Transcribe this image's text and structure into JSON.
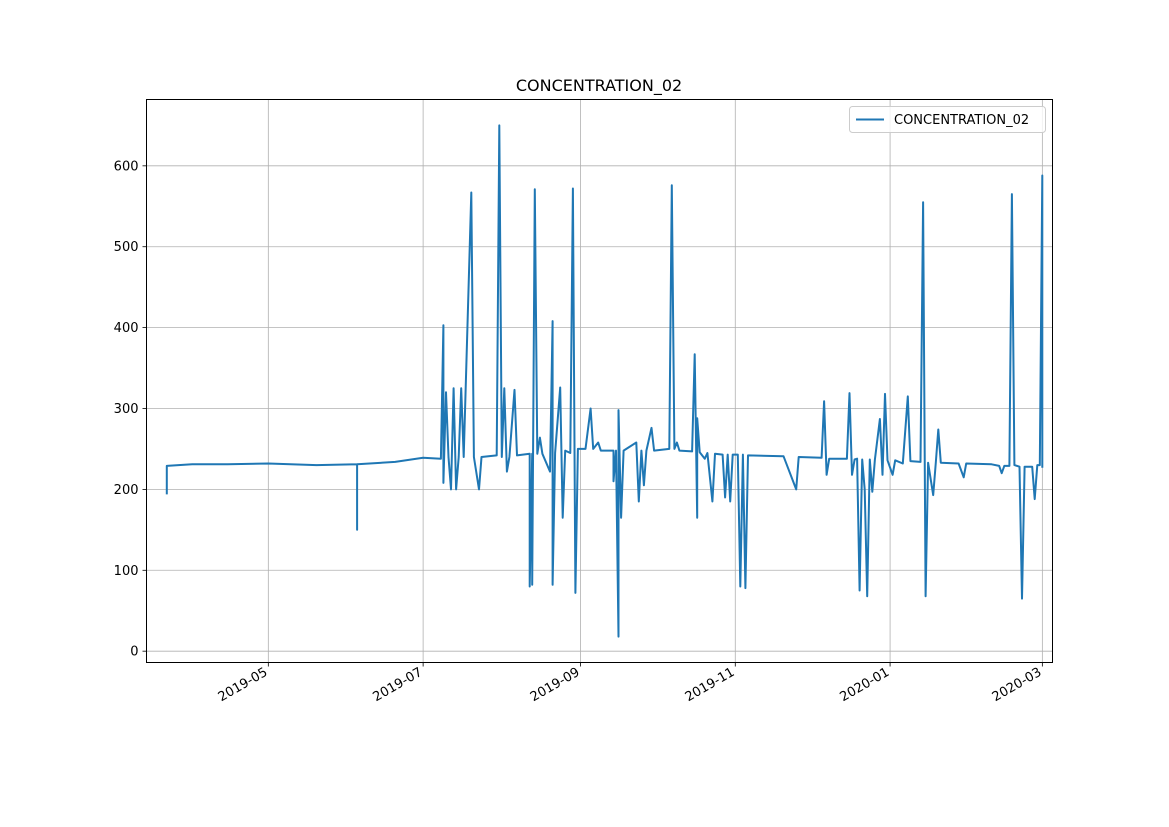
{
  "chart_data": {
    "type": "line",
    "title": "CONCENTRATION_02",
    "xlabel": "",
    "ylabel": "",
    "x_range": [
      "2019-03-14",
      "2020-03-05"
    ],
    "ylim": [
      -14,
      682
    ],
    "x_ticks": [
      "2019-05",
      "2019-07",
      "2019-09",
      "2019-11",
      "2020-01",
      "2020-03"
    ],
    "y_ticks": [
      0,
      100,
      200,
      300,
      400,
      500,
      600
    ],
    "grid": true,
    "legend_position": "top-right",
    "series": [
      {
        "name": "CONCENTRATION_02",
        "color": "#1f77b4",
        "points": [
          [
            "2019-03-22",
            195
          ],
          [
            "2019-03-22",
            229
          ],
          [
            "2019-04-01",
            231
          ],
          [
            "2019-04-15",
            231
          ],
          [
            "2019-05-01",
            232
          ],
          [
            "2019-05-20",
            230
          ],
          [
            "2019-06-05",
            231
          ],
          [
            "2019-06-05",
            150
          ],
          [
            "2019-06-05",
            231
          ],
          [
            "2019-06-20",
            234
          ],
          [
            "2019-07-01",
            239
          ],
          [
            "2019-07-08",
            238
          ],
          [
            "2019-07-09",
            403
          ],
          [
            "2019-07-09",
            208
          ],
          [
            "2019-07-10",
            320
          ],
          [
            "2019-07-11",
            240
          ],
          [
            "2019-07-12",
            200
          ],
          [
            "2019-07-13",
            325
          ],
          [
            "2019-07-14",
            200
          ],
          [
            "2019-07-15",
            240
          ],
          [
            "2019-07-16",
            325
          ],
          [
            "2019-07-17",
            240
          ],
          [
            "2019-07-20",
            567
          ],
          [
            "2019-07-21",
            240
          ],
          [
            "2019-07-23",
            200
          ],
          [
            "2019-07-24",
            240
          ],
          [
            "2019-07-30",
            242
          ],
          [
            "2019-07-31",
            650
          ],
          [
            "2019-08-01",
            240
          ],
          [
            "2019-08-02",
            325
          ],
          [
            "2019-08-03",
            222
          ],
          [
            "2019-08-04",
            240
          ],
          [
            "2019-08-06",
            323
          ],
          [
            "2019-08-07",
            242
          ],
          [
            "2019-08-12",
            244
          ],
          [
            "2019-08-12",
            80
          ],
          [
            "2019-08-13",
            244
          ],
          [
            "2019-08-13",
            82
          ],
          [
            "2019-08-14",
            571
          ],
          [
            "2019-08-15",
            244
          ],
          [
            "2019-08-16",
            264
          ],
          [
            "2019-08-17",
            244
          ],
          [
            "2019-08-20",
            222
          ],
          [
            "2019-08-21",
            408
          ],
          [
            "2019-08-21",
            82
          ],
          [
            "2019-08-22",
            245
          ],
          [
            "2019-08-24",
            326
          ],
          [
            "2019-08-25",
            165
          ],
          [
            "2019-08-26",
            248
          ],
          [
            "2019-08-28",
            245
          ],
          [
            "2019-08-29",
            572
          ],
          [
            "2019-08-30",
            72
          ],
          [
            "2019-08-31",
            250
          ],
          [
            "2019-09-03",
            250
          ],
          [
            "2019-09-05",
            300
          ],
          [
            "2019-09-06",
            250
          ],
          [
            "2019-09-08",
            258
          ],
          [
            "2019-09-09",
            248
          ],
          [
            "2019-09-14",
            248
          ],
          [
            "2019-09-14",
            210
          ],
          [
            "2019-09-15",
            248
          ],
          [
            "2019-09-16",
            18
          ],
          [
            "2019-09-16",
            298
          ],
          [
            "2019-09-17",
            165
          ],
          [
            "2019-09-18",
            248
          ],
          [
            "2019-09-23",
            258
          ],
          [
            "2019-09-24",
            185
          ],
          [
            "2019-09-25",
            248
          ],
          [
            "2019-09-26",
            205
          ],
          [
            "2019-09-27",
            248
          ],
          [
            "2019-09-29",
            276
          ],
          [
            "2019-09-30",
            248
          ],
          [
            "2019-10-06",
            250
          ],
          [
            "2019-10-07",
            576
          ],
          [
            "2019-10-08",
            250
          ],
          [
            "2019-10-09",
            258
          ],
          [
            "2019-10-10",
            248
          ],
          [
            "2019-10-15",
            247
          ],
          [
            "2019-10-16",
            367
          ],
          [
            "2019-10-17",
            165
          ],
          [
            "2019-10-17",
            288
          ],
          [
            "2019-10-18",
            246
          ],
          [
            "2019-10-20",
            238
          ],
          [
            "2019-10-21",
            245
          ],
          [
            "2019-10-23",
            185
          ],
          [
            "2019-10-24",
            244
          ],
          [
            "2019-10-27",
            243
          ],
          [
            "2019-10-28",
            190
          ],
          [
            "2019-10-29",
            243
          ],
          [
            "2019-10-30",
            185
          ],
          [
            "2019-10-31",
            243
          ],
          [
            "2019-11-02",
            243
          ],
          [
            "2019-11-03",
            80
          ],
          [
            "2019-11-04",
            243
          ],
          [
            "2019-11-05",
            78
          ],
          [
            "2019-11-06",
            242
          ],
          [
            "2019-11-20",
            241
          ],
          [
            "2019-11-25",
            200
          ],
          [
            "2019-11-26",
            240
          ],
          [
            "2019-12-05",
            239
          ],
          [
            "2019-12-06",
            309
          ],
          [
            "2019-12-07",
            218
          ],
          [
            "2019-12-08",
            238
          ],
          [
            "2019-12-15",
            238
          ],
          [
            "2019-12-16",
            319
          ],
          [
            "2019-12-17",
            218
          ],
          [
            "2019-12-18",
            237
          ],
          [
            "2019-12-19",
            238
          ],
          [
            "2019-12-20",
            75
          ],
          [
            "2019-12-21",
            237
          ],
          [
            "2019-12-22",
            200
          ],
          [
            "2019-12-23",
            68
          ],
          [
            "2019-12-24",
            237
          ],
          [
            "2019-12-25",
            197
          ],
          [
            "2019-12-26",
            237
          ],
          [
            "2019-12-28",
            287
          ],
          [
            "2019-12-29",
            218
          ],
          [
            "2019-12-30",
            318
          ],
          [
            "2019-12-31",
            236
          ],
          [
            "2020-01-02",
            218
          ],
          [
            "2020-01-03",
            236
          ],
          [
            "2020-01-06",
            232
          ],
          [
            "2020-01-08",
            315
          ],
          [
            "2020-01-09",
            235
          ],
          [
            "2020-01-13",
            234
          ],
          [
            "2020-01-14",
            555
          ],
          [
            "2020-01-15",
            68
          ],
          [
            "2020-01-16",
            233
          ],
          [
            "2020-01-18",
            193
          ],
          [
            "2020-01-19",
            233
          ],
          [
            "2020-01-20",
            274
          ],
          [
            "2020-01-21",
            233
          ],
          [
            "2020-01-28",
            232
          ],
          [
            "2020-01-30",
            215
          ],
          [
            "2020-01-31",
            232
          ],
          [
            "2020-02-10",
            231
          ],
          [
            "2020-02-13",
            229
          ],
          [
            "2020-02-14",
            220
          ],
          [
            "2020-02-15",
            229
          ],
          [
            "2020-02-17",
            229
          ],
          [
            "2020-02-18",
            565
          ],
          [
            "2020-02-19",
            230
          ],
          [
            "2020-02-21",
            228
          ],
          [
            "2020-02-22",
            65
          ],
          [
            "2020-02-23",
            228
          ],
          [
            "2020-02-26",
            228
          ],
          [
            "2020-02-27",
            188
          ],
          [
            "2020-02-28",
            230
          ],
          [
            "2020-02-29",
            230
          ],
          [
            "2020-03-01",
            588
          ],
          [
            "2020-03-01",
            228
          ]
        ]
      }
    ]
  }
}
